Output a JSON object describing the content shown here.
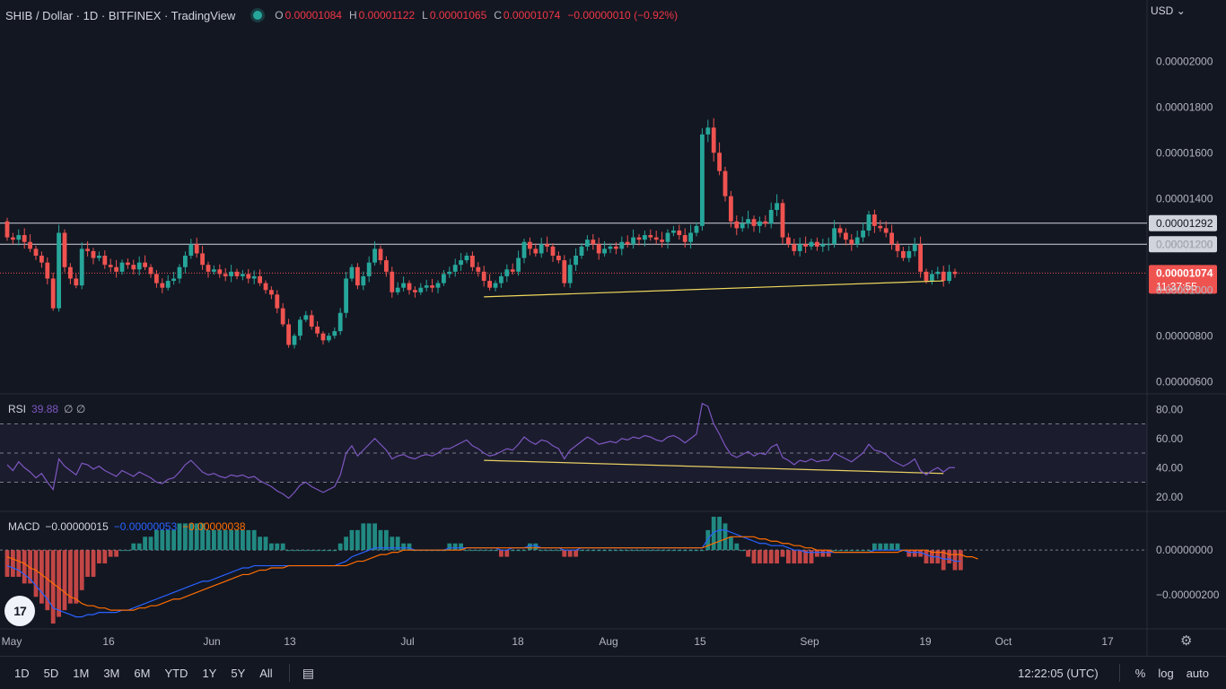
{
  "header": {
    "symbol": "SHIB / Dollar · 1D · BITFINEX · TradingView",
    "o_key": "O",
    "o_val": "0.00001084",
    "h_key": "H",
    "h_val": "0.00001122",
    "l_key": "L",
    "l_val": "0.00001065",
    "c_key": "C",
    "c_val": "0.00001074",
    "change": "−0.00000010 (−0.92%)",
    "currency": "USD"
  },
  "price_axis": {
    "ticks": [
      "0.00002000",
      "0.00001800",
      "0.00001600",
      "0.00001400",
      "0.00001200",
      "0.00001000",
      "0.00000800",
      "0.00000600"
    ],
    "tick_values": [
      2e-05,
      1.8e-05,
      1.6e-05,
      1.4e-05,
      1.2e-05,
      1e-05,
      8e-06,
      6e-06
    ],
    "level1_label": "0.00001292",
    "level1": 1.292e-05,
    "level2_label": "0.00001200",
    "level2": 1.2e-05,
    "last_label": "0.00001074",
    "last": 1.074e-05,
    "countdown": "11:37:55"
  },
  "rsi": {
    "label": "RSI",
    "value": "39.88",
    "extra": "∅ ∅",
    "ticks": [
      "80.00",
      "60.00",
      "40.00",
      "20.00"
    ],
    "tick_values": [
      80,
      60,
      40,
      20
    ],
    "upper": 70,
    "lower": 30,
    "mid": 50
  },
  "macd": {
    "label": "MACD",
    "v1": "−0.00000015",
    "v2": "−0.00000053",
    "v3": "−0.00000038",
    "ticks": [
      "0.00000000",
      "−0.00000200"
    ],
    "tick_values": [
      0,
      -2e-06
    ]
  },
  "time_axis": [
    "May",
    "16",
    "Jun",
    "13",
    "Jul",
    "18",
    "Aug",
    "15",
    "Sep",
    "19",
    "Oct",
    "17"
  ],
  "bottom": {
    "timeframes": [
      "1D",
      "5D",
      "1M",
      "3M",
      "6M",
      "YTD",
      "1Y",
      "5Y",
      "All"
    ],
    "clock": "12:22:05 (UTC)",
    "pct": "%",
    "log": "log",
    "auto": "auto"
  },
  "colors": {
    "up": "#26a69a",
    "down": "#ef5350",
    "bg": "#131722",
    "rsi": "#7e57c2",
    "macd": "#2962ff",
    "signal": "#ff6d00",
    "trend": "#f0d95c"
  },
  "chart_data": {
    "type": "candlestick",
    "title": "SHIB / Dollar · 1D · BITFINEX",
    "x_start": "2022-05-01",
    "closes": [
      1.23e-05,
      1.22e-05,
      1.24e-05,
      1.21e-05,
      1.18e-05,
      1.15e-05,
      1.12e-05,
      1.05e-05,
      9.2e-06,
      1.25e-05,
      1.1e-05,
      1.05e-05,
      1.02e-05,
      1.18e-05,
      1.17e-05,
      1.14e-05,
      1.15e-05,
      1.11e-05,
      1.1e-05,
      1.08e-05,
      1.12e-05,
      1.11e-05,
      1.09e-05,
      1.12e-05,
      1.1e-05,
      1.07e-05,
      1.03e-05,
      1.01e-05,
      1.04e-05,
      1.05e-05,
      1.1e-05,
      1.15e-05,
      1.2e-05,
      1.16e-05,
      1.11e-05,
      1.08e-05,
      1.09e-05,
      1.07e-05,
      1.06e-05,
      1.08e-05,
      1.06e-05,
      1.07e-05,
      1.05e-05,
      1.06e-05,
      1.03e-05,
      1e-05,
      9.8e-06,
      9.2e-06,
      8.5e-06,
      7.6e-06,
      8e-06,
      8.7e-06,
      8.9e-06,
      8.4e-06,
      8.1e-06,
      7.8e-06,
      8e-06,
      8.2e-06,
      9e-06,
      1.05e-05,
      1.1e-05,
      1.02e-05,
      1.06e-05,
      1.12e-05,
      1.18e-05,
      1.13e-05,
      1.08e-05,
      9.9e-06,
      1.01e-05,
      1.03e-05,
      1e-05,
      9.9e-06,
      1.01e-05,
      1.02e-05,
      1.01e-05,
      1.03e-05,
      1.07e-05,
      1.08e-05,
      1.11e-05,
      1.13e-05,
      1.15e-05,
      1.1e-05,
      1.08e-05,
      1.04e-05,
      1.01e-05,
      1.03e-05,
      1.06e-05,
      1.09e-05,
      1.08e-05,
      1.14e-05,
      1.21e-05,
      1.18e-05,
      1.16e-05,
      1.2e-05,
      1.19e-05,
      1.15e-05,
      1.13e-05,
      1.03e-05,
      1.11e-05,
      1.15e-05,
      1.19e-05,
      1.22e-05,
      1.2e-05,
      1.16e-05,
      1.18e-05,
      1.19e-05,
      1.18e-05,
      1.21e-05,
      1.2e-05,
      1.23e-05,
      1.22e-05,
      1.24e-05,
      1.23e-05,
      1.22e-05,
      1.21e-05,
      1.25e-05,
      1.26e-05,
      1.24e-05,
      1.21e-05,
      1.25e-05,
      1.28e-05,
      1.68e-05,
      1.71e-05,
      1.6e-05,
      1.52e-05,
      1.41e-05,
      1.3e-05,
      1.27e-05,
      1.29e-05,
      1.31e-05,
      1.28e-05,
      1.3e-05,
      1.29e-05,
      1.35e-05,
      1.38e-05,
      1.23e-05,
      1.2e-05,
      1.17e-05,
      1.2e-05,
      1.19e-05,
      1.21e-05,
      1.19e-05,
      1.2e-05,
      1.2e-05,
      1.27e-05,
      1.25e-05,
      1.22e-05,
      1.2e-05,
      1.23e-05,
      1.26e-05,
      1.33e-05,
      1.28e-05,
      1.27e-05,
      1.25e-05,
      1.2e-05,
      1.17e-05,
      1.14e-05,
      1.17e-05,
      1.2e-05,
      1.08e-05,
      1.04e-05,
      1.07e-05,
      1.08e-05,
      1.04e-05,
      1.08e-05,
      1.07e-05
    ],
    "ylim": [
      5.5e-06,
      2.15e-05
    ],
    "rsi": [
      42,
      38,
      44,
      40,
      37,
      33,
      36,
      30,
      25,
      46,
      41,
      38,
      35,
      43,
      42,
      39,
      41,
      38,
      36,
      34,
      38,
      36,
      34,
      37,
      35,
      33,
      30,
      29,
      32,
      33,
      37,
      42,
      45,
      41,
      37,
      35,
      36,
      34,
      33,
      35,
      34,
      35,
      33,
      34,
      31,
      29,
      27,
      24,
      22,
      19,
      23,
      28,
      30,
      27,
      25,
      23,
      25,
      27,
      35,
      50,
      55,
      48,
      52,
      56,
      60,
      56,
      52,
      46,
      48,
      49,
      47,
      46,
      48,
      49,
      48,
      50,
      53,
      53,
      55,
      57,
      59,
      55,
      53,
      50,
      48,
      49,
      51,
      53,
      52,
      56,
      61,
      58,
      56,
      59,
      58,
      55,
      53,
      46,
      52,
      55,
      58,
      61,
      59,
      56,
      57,
      58,
      57,
      60,
      59,
      61,
      60,
      62,
      61,
      59,
      58,
      61,
      62,
      60,
      57,
      60,
      63,
      84,
      82,
      70,
      63,
      55,
      49,
      47,
      49,
      51,
      48,
      50,
      49,
      54,
      56,
      47,
      45,
      42,
      45,
      44,
      46,
      44,
      45,
      45,
      50,
      48,
      46,
      44,
      47,
      50,
      56,
      52,
      51,
      49,
      45,
      43,
      41,
      43,
      46,
      38,
      35,
      38,
      40,
      37,
      40,
      40
    ],
    "macd_line": [
      -7e-07,
      -8e-07,
      -9e-07,
      -1.1e-06,
      -1.3e-06,
      -1.6e-06,
      -1.9e-06,
      -2.2e-06,
      -2.6e-06,
      -2.7e-06,
      -2.8e-06,
      -2.9e-06,
      -3e-06,
      -3e-06,
      -2.9e-06,
      -2.9e-06,
      -2.8e-06,
      -2.8e-06,
      -2.8e-06,
      -2.8e-06,
      -2.7e-06,
      -2.7e-06,
      -2.6e-06,
      -2.5e-06,
      -2.4e-06,
      -2.3e-06,
      -2.2e-06,
      -2.1e-06,
      -2e-06,
      -1.9e-06,
      -1.8e-06,
      -1.7e-06,
      -1.6e-06,
      -1.5e-06,
      -1.4e-06,
      -1.4e-06,
      -1.3e-06,
      -1.2e-06,
      -1.1e-06,
      -1e-06,
      -9e-07,
      -8e-07,
      -8e-07,
      -7e-07,
      -7e-07,
      -7e-07,
      -7e-07,
      -7e-07,
      -7e-07,
      -7e-07,
      -7e-07,
      -7e-07,
      -7e-07,
      -7e-07,
      -7e-07,
      -7e-07,
      -7e-07,
      -7e-07,
      -6e-07,
      -5e-07,
      -3e-07,
      -2e-07,
      -1e-07,
      0.0,
      1e-07,
      1e-07,
      1e-07,
      1e-07,
      1e-07,
      1e-07,
      1e-07,
      0.0,
      0.0,
      0.0,
      0.0,
      0.0,
      0.0,
      1e-07,
      1e-07,
      1e-07,
      1e-07,
      1e-07,
      1e-07,
      1e-07,
      1e-07,
      1e-07,
      0.0,
      0.0,
      1e-07,
      1e-07,
      1e-07,
      2e-07,
      2e-07,
      1e-07,
      1e-07,
      1e-07,
      1e-07,
      0.0,
      0.0,
      0.0,
      1e-07,
      1e-07,
      1e-07,
      1e-07,
      1e-07,
      1e-07,
      1e-07,
      1e-07,
      1e-07,
      1e-07,
      1e-07,
      1e-07,
      1e-07,
      1e-07,
      1e-07,
      1e-07,
      1e-07,
      1e-07,
      1e-07,
      1e-07,
      1e-07,
      1e-07,
      5e-07,
      8e-07,
      9e-07,
      9e-07,
      8e-07,
      7e-07,
      6e-07,
      5e-07,
      4e-07,
      3e-07,
      3e-07,
      2e-07,
      2e-07,
      2e-07,
      1e-07,
      0.0,
      0.0,
      -1e-07,
      -1e-07,
      -1e-07,
      -1e-07,
      -1e-07,
      -1e-07,
      -1e-07,
      -1e-07,
      -1e-07,
      -1e-07,
      -1e-07,
      -1e-07,
      0.0,
      0.0,
      0.0,
      0.0,
      0.0,
      0.0,
      -1e-07,
      -1e-07,
      -1e-07,
      -2e-07,
      -3e-07,
      -3e-07,
      -4e-07,
      -4e-07,
      -5e-07,
      -5e-07
    ],
    "signal_line": [
      -3e-07,
      -4e-07,
      -5e-07,
      -6e-07,
      -8e-07,
      -9e-07,
      -1.1e-06,
      -1.3e-06,
      -1.5e-06,
      -1.7e-06,
      -1.9e-06,
      -2.1e-06,
      -2.2e-06,
      -2.4e-06,
      -2.5e-06,
      -2.5e-06,
      -2.6e-06,
      -2.6e-06,
      -2.7e-06,
      -2.7e-06,
      -2.7e-06,
      -2.7e-06,
      -2.7e-06,
      -2.6e-06,
      -2.6e-06,
      -2.5e-06,
      -2.5e-06,
      -2.4e-06,
      -2.3e-06,
      -2.2e-06,
      -2.2e-06,
      -2.1e-06,
      -2e-06,
      -1.9e-06,
      -1.8e-06,
      -1.7e-06,
      -1.6e-06,
      -1.5e-06,
      -1.4e-06,
      -1.3e-06,
      -1.2e-06,
      -1.1e-06,
      -1.1e-06,
      -1e-06,
      -9e-07,
      -9e-07,
      -8e-07,
      -8e-07,
      -8e-07,
      -7e-07,
      -7e-07,
      -7e-07,
      -7e-07,
      -7e-07,
      -7e-07,
      -7e-07,
      -7e-07,
      -7e-07,
      -7e-07,
      -7e-07,
      -6e-07,
      -5e-07,
      -5e-07,
      -4e-07,
      -3e-07,
      -2e-07,
      -2e-07,
      -1e-07,
      -1e-07,
      0.0,
      0.0,
      0.0,
      0.0,
      0.0,
      0.0,
      0.0,
      0.0,
      0.0,
      0.0,
      0.0,
      1e-07,
      1e-07,
      1e-07,
      1e-07,
      1e-07,
      1e-07,
      1e-07,
      1e-07,
      1e-07,
      1e-07,
      1e-07,
      1e-07,
      1e-07,
      1e-07,
      1e-07,
      1e-07,
      1e-07,
      1e-07,
      1e-07,
      1e-07,
      1e-07,
      1e-07,
      1e-07,
      1e-07,
      1e-07,
      1e-07,
      1e-07,
      1e-07,
      1e-07,
      1e-07,
      1e-07,
      1e-07,
      1e-07,
      1e-07,
      1e-07,
      1e-07,
      1e-07,
      1e-07,
      1e-07,
      1e-07,
      1e-07,
      1e-07,
      2e-07,
      3e-07,
      4e-07,
      5e-07,
      6e-07,
      6e-07,
      6e-07,
      6e-07,
      6e-07,
      5e-07,
      5e-07,
      4e-07,
      4e-07,
      3e-07,
      3e-07,
      2e-07,
      2e-07,
      1e-07,
      1e-07,
      0.0,
      0.0,
      0.0,
      -1e-07,
      -1e-07,
      -1e-07,
      -1e-07,
      -1e-07,
      -1e-07,
      -1e-07,
      -1e-07,
      -1e-07,
      -1e-07,
      -1e-07,
      -1e-07,
      0.0,
      0.0,
      0.0,
      0.0,
      0.0,
      -1e-07,
      -1e-07,
      -1e-07,
      -2e-07,
      -2e-07,
      -2e-07,
      -3e-07,
      -3e-07,
      -4e-07
    ]
  }
}
